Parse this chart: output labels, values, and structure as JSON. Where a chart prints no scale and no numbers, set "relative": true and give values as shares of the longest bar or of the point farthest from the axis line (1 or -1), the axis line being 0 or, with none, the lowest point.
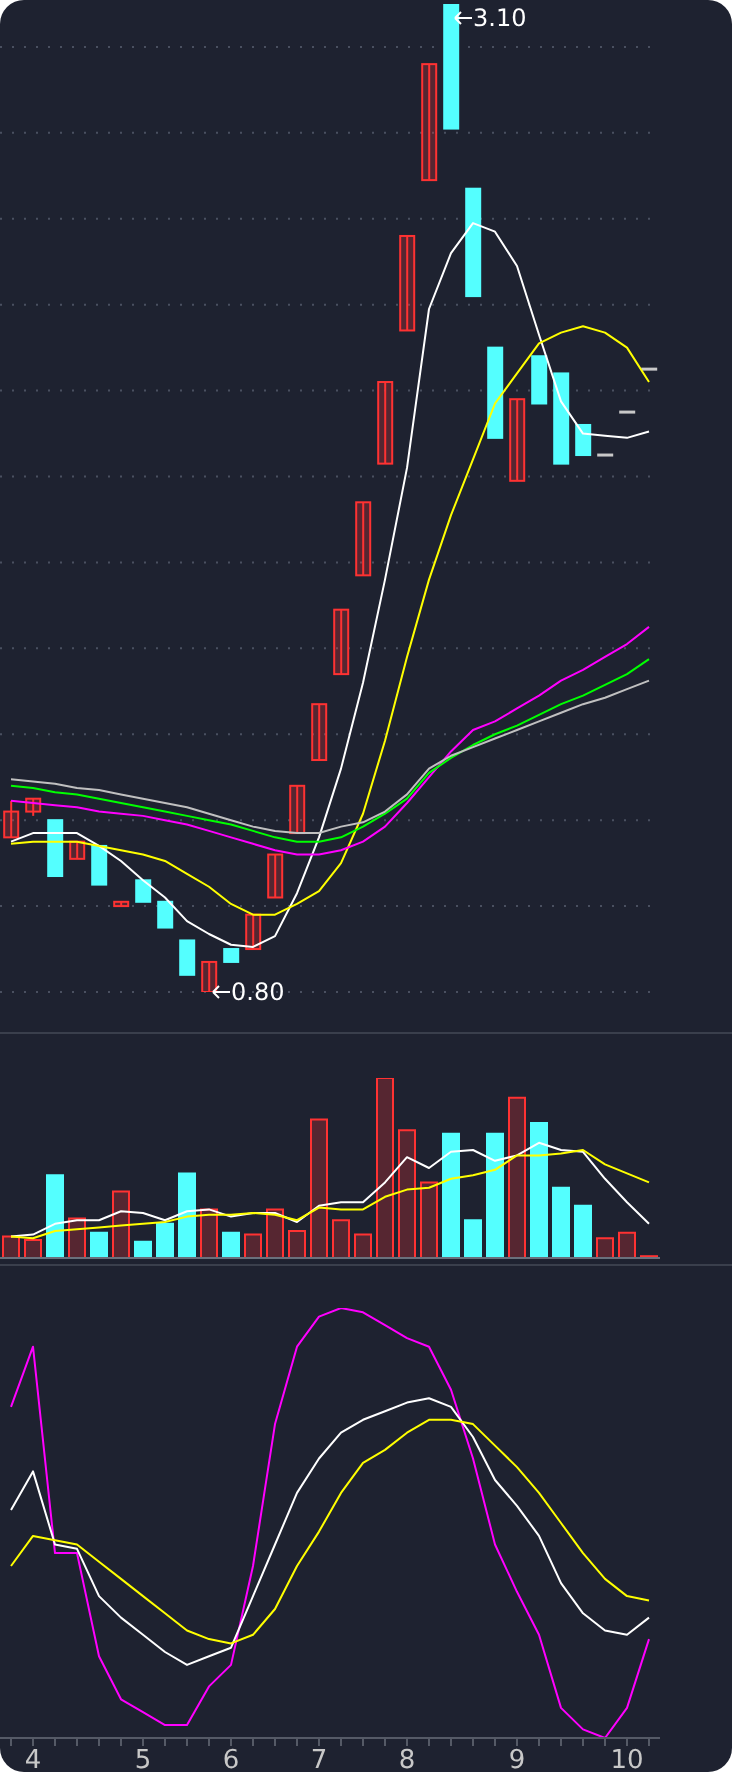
{
  "chart_data": [
    {
      "type": "candlestick",
      "categories": [
        null,
        "4",
        null,
        null,
        null,
        null,
        "5",
        null,
        null,
        null,
        "6",
        null,
        null,
        null,
        "7",
        null,
        null,
        null,
        "8",
        null,
        null,
        null,
        null,
        "9",
        null,
        null,
        null,
        null,
        "10",
        null
      ],
      "ohlc": [
        [
          1.16,
          1.245,
          1.16,
          1.22
        ],
        [
          1.22,
          1.25,
          1.21,
          1.25
        ],
        [
          1.2,
          1.2,
          1.07,
          1.07
        ],
        [
          1.11,
          1.15,
          1.11,
          1.15
        ],
        [
          1.14,
          1.14,
          1.05,
          1.05
        ],
        [
          1.0,
          1.01,
          1.0,
          1.01
        ],
        [
          1.06,
          1.06,
          1.01,
          1.01
        ],
        [
          1.01,
          1.01,
          0.95,
          0.95
        ],
        [
          0.92,
          0.92,
          0.84,
          0.84
        ],
        [
          0.8,
          0.87,
          0.8,
          0.87
        ],
        [
          0.9,
          0.9,
          0.87,
          0.87
        ],
        [
          0.9,
          0.98,
          0.9,
          0.98
        ],
        [
          1.02,
          1.12,
          1.02,
          1.12
        ],
        [
          1.17,
          1.28,
          1.17,
          1.28
        ],
        [
          1.34,
          1.47,
          1.34,
          1.47
        ],
        [
          1.54,
          1.69,
          1.54,
          1.69
        ],
        [
          1.77,
          1.94,
          1.77,
          1.94
        ],
        [
          2.03,
          2.22,
          2.03,
          2.22
        ],
        [
          2.34,
          2.56,
          2.34,
          2.56
        ],
        [
          2.69,
          2.96,
          2.69,
          2.96
        ],
        [
          3.1,
          3.1,
          2.81,
          2.81
        ],
        [
          2.67,
          2.67,
          2.42,
          2.42
        ],
        [
          2.3,
          2.3,
          2.09,
          2.09
        ],
        [
          1.99,
          2.18,
          1.99,
          2.18
        ],
        [
          2.28,
          2.28,
          2.17,
          2.17
        ],
        [
          2.24,
          2.24,
          2.03,
          2.03
        ],
        [
          2.12,
          2.12,
          2.05,
          2.05
        ],
        [
          2.05,
          2.05,
          2.05,
          2.05
        ],
        [
          2.15,
          2.15,
          2.15,
          2.15
        ],
        [
          2.25,
          2.25,
          2.25,
          2.25
        ]
      ],
      "colors": [
        "#ff3232",
        "#ff3232",
        "#54ffff",
        "#ff3232",
        "#54ffff",
        "#ff3232",
        "#54ffff",
        "#54ffff",
        "#54ffff",
        "#ff3232",
        "#54ffff",
        "#ff3232",
        "#ff3232",
        "#ff3232",
        "#ff3232",
        "#ff3232",
        "#ff3232",
        "#ff3232",
        "#ff3232",
        "#ff3232",
        "#54ffff",
        "#54ffff",
        "#54ffff",
        "#ff3232",
        "#54ffff",
        "#54ffff",
        "#54ffff",
        "#c8c8c8",
        "#c8c8c8",
        "#c8c8c8"
      ],
      "series": [
        {
          "type": "line",
          "color": "#ffffff",
          "values": [
            1.15,
            1.17,
            1.17,
            1.17,
            1.14,
            1.105,
            1.06,
            1.02,
            0.965,
            0.935,
            0.91,
            0.905,
            0.93,
            1.03,
            1.16,
            1.32,
            1.52,
            1.76,
            2.02,
            2.39,
            2.52,
            2.59,
            2.57,
            2.49,
            2.33,
            2.175,
            2.1,
            2.095,
            2.09,
            2.105
          ]
        },
        {
          "type": "line",
          "color": "#ffff00",
          "values": [
            1.145,
            1.15,
            1.15,
            1.15,
            1.14,
            1.13,
            1.12,
            1.105,
            1.075,
            1.045,
            1.005,
            0.98,
            0.98,
            1.005,
            1.035,
            1.1,
            1.215,
            1.385,
            1.58,
            1.76,
            1.91,
            2.04,
            2.17,
            2.24,
            2.31,
            2.335,
            2.35,
            2.335,
            2.3,
            2.22
          ]
        },
        {
          "type": "line",
          "color": "#ff00ff",
          "values": [
            1.245,
            1.24,
            1.235,
            1.23,
            1.22,
            1.215,
            1.21,
            1.2,
            1.19,
            1.175,
            1.16,
            1.145,
            1.13,
            1.12,
            1.12,
            1.13,
            1.15,
            1.185,
            1.24,
            1.3,
            1.36,
            1.41,
            1.43,
            1.46,
            1.49,
            1.525,
            1.55,
            1.58,
            1.61,
            1.65
          ]
        },
        {
          "type": "line",
          "color": "#00ff00",
          "values": [
            1.28,
            1.275,
            1.265,
            1.26,
            1.25,
            1.24,
            1.23,
            1.22,
            1.21,
            1.2,
            1.19,
            1.175,
            1.16,
            1.15,
            1.15,
            1.16,
            1.185,
            1.215,
            1.25,
            1.31,
            1.345,
            1.375,
            1.4,
            1.42,
            1.445,
            1.47,
            1.49,
            1.515,
            1.54,
            1.575
          ]
        },
        {
          "type": "line",
          "color": "#c0c0c0",
          "values": [
            1.295,
            1.29,
            1.285,
            1.275,
            1.27,
            1.26,
            1.25,
            1.24,
            1.23,
            1.215,
            1.2,
            1.185,
            1.175,
            1.17,
            1.17,
            1.185,
            1.195,
            1.22,
            1.26,
            1.32,
            1.35,
            1.37,
            1.39,
            1.41,
            1.43,
            1.45,
            1.47,
            1.485,
            1.505,
            1.525
          ]
        }
      ],
      "yticks": [
        {
          "value": 0.8,
          "label": null
        },
        {
          "value": 1.0,
          "label": null
        },
        {
          "value": 1.2,
          "label": null
        },
        {
          "value": 1.4,
          "label": null
        },
        {
          "value": 1.6,
          "label": null
        },
        {
          "value": 1.8,
          "label": null
        },
        {
          "value": 2.0,
          "label": null
        },
        {
          "value": 2.2,
          "label": null
        },
        {
          "value": 2.4,
          "label": null
        },
        {
          "value": 2.6,
          "label": null
        },
        {
          "value": 2.8,
          "label": null
        },
        {
          "value": 3.0,
          "label": null
        }
      ],
      "grid": "y",
      "tick_labels": false,
      "annotations": [
        "3.10",
        "0.80"
      ]
    },
    {
      "type": "bar",
      "relative": true,
      "categories": [
        null,
        "4",
        null,
        null,
        null,
        null,
        "5",
        null,
        null,
        null,
        "6",
        null,
        null,
        null,
        "7",
        null,
        null,
        null,
        "8",
        null,
        null,
        null,
        null,
        "9",
        null,
        null,
        null,
        null,
        "10",
        null
      ],
      "series": [
        {
          "type": "bar",
          "colors": [
            "#ff3232",
            "#ff3232",
            "#54ffff",
            "#ff3232",
            "#54ffff",
            "#ff3232",
            "#54ffff",
            "#54ffff",
            "#54ffff",
            "#ff3232",
            "#54ffff",
            "#ff3232",
            "#ff3232",
            "#ff3232",
            "#ff3232",
            "#ff3232",
            "#ff3232",
            "#ff3232",
            "#ff3232",
            "#ff3232",
            "#54ffff",
            "#54ffff",
            "#54ffff",
            "#ff3232",
            "#54ffff",
            "#54ffff",
            "#54ffff",
            "#ff3232",
            "#ff3232",
            "#ff3232"
          ],
          "values": [
            0.12,
            0.1,
            0.46,
            0.22,
            0.14,
            0.37,
            0.09,
            0.19,
            0.47,
            0.27,
            0.14,
            0.13,
            0.27,
            0.15,
            0.77,
            0.21,
            0.13,
            1,
            0.71,
            0.42,
            0.69,
            0.21,
            0.69,
            0.89,
            0.75,
            0.39,
            0.29,
            0.11,
            0.14,
            0.01
          ]
        },
        {
          "type": "line",
          "color": "#ffffff",
          "values": [
            0.12,
            0.13,
            0.19,
            0.21,
            0.21,
            0.26,
            0.25,
            0.21,
            0.26,
            0.27,
            0.23,
            0.25,
            0.25,
            0.2,
            0.29,
            0.31,
            0.31,
            0.42,
            0.56,
            0.5,
            0.59,
            0.6,
            0.54,
            0.57,
            0.64,
            0.6,
            0.59,
            0.44,
            0.31,
            0.19
          ]
        },
        {
          "type": "line",
          "color": "#ffff00",
          "values": [
            0.12,
            0.11,
            0.15,
            0.16,
            0.17,
            0.18,
            0.19,
            0.2,
            0.23,
            0.24,
            0.24,
            0.25,
            0.24,
            0.21,
            0.28,
            0.27,
            0.27,
            0.34,
            0.38,
            0.39,
            0.44,
            0.46,
            0.49,
            0.57,
            0.57,
            0.58,
            0.6,
            0.52,
            0.47,
            0.42
          ]
        }
      ],
      "tick_labels": false
    },
    {
      "type": "line",
      "relative": true,
      "categories": [
        null,
        "4",
        null,
        null,
        null,
        null,
        "5",
        null,
        null,
        null,
        "6",
        null,
        null,
        null,
        "7",
        null,
        null,
        null,
        "8",
        null,
        null,
        null,
        null,
        "9",
        null,
        null,
        null,
        null,
        "10",
        null
      ],
      "series": [
        {
          "color": "#ff00ff",
          "values": [
            0.77,
            0.91,
            0.43,
            0.43,
            0.19,
            0.09,
            0.06,
            0.03,
            0.03,
            0.12,
            0.17,
            0.4,
            0.73,
            0.91,
            0.98,
            1,
            0.99,
            0.96,
            0.93,
            0.91,
            0.81,
            0.65,
            0.45,
            0.34,
            0.24,
            0.07,
            0.02,
            0,
            0.07,
            0.23
          ]
        },
        {
          "color": "#ffffff",
          "values": [
            0.53,
            0.62,
            0.45,
            0.44,
            0.33,
            0.28,
            0.24,
            0.2,
            0.17,
            0.19,
            0.21,
            0.33,
            0.45,
            0.57,
            0.65,
            0.71,
            0.74,
            0.76,
            0.78,
            0.79,
            0.77,
            0.7,
            0.6,
            0.54,
            0.47,
            0.36,
            0.29,
            0.25,
            0.24,
            0.28
          ]
        },
        {
          "color": "#ffff00",
          "values": [
            0.4,
            0.47,
            0.46,
            0.45,
            0.41,
            0.37,
            0.33,
            0.29,
            0.25,
            0.23,
            0.22,
            0.24,
            0.3,
            0.4,
            0.48,
            0.57,
            0.64,
            0.67,
            0.71,
            0.74,
            0.74,
            0.73,
            0.68,
            0.63,
            0.57,
            0.5,
            0.43,
            0.37,
            0.33,
            0.32
          ]
        }
      ],
      "tick_labels": "x"
    }
  ]
}
